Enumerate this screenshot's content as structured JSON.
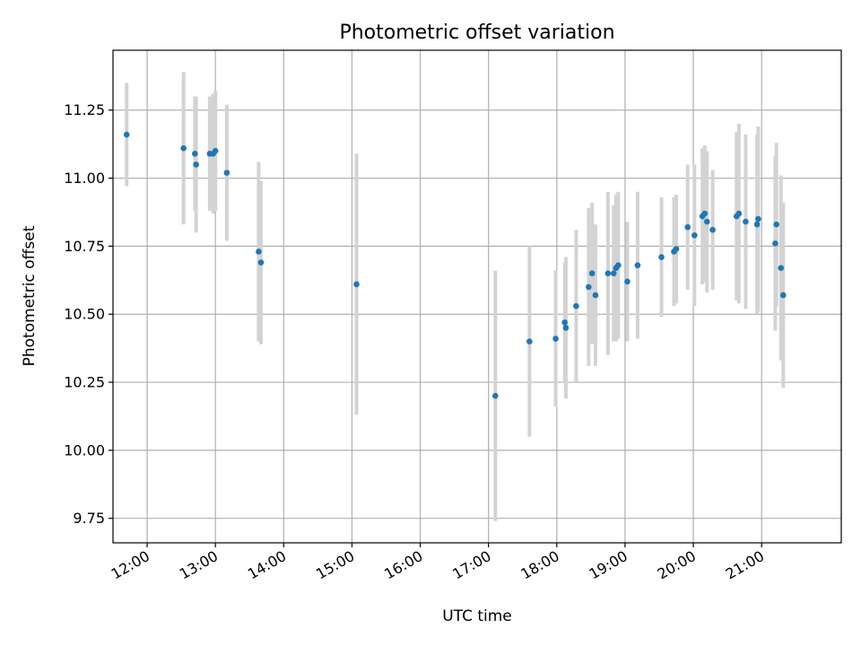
{
  "chart_data": {
    "type": "scatter",
    "title": "Photometric offset variation",
    "xlabel": "UTC time",
    "ylabel": "Photometric offset",
    "x_tick_labels": [
      "12:00",
      "13:00",
      "14:00",
      "15:00",
      "16:00",
      "17:00",
      "18:00",
      "19:00",
      "20:00",
      "21:00"
    ],
    "y_tick_labels": [
      "9.75",
      "10.00",
      "10.25",
      "10.50",
      "10.75",
      "11.00",
      "11.25"
    ],
    "xlim": [
      "11:30",
      "22:10"
    ],
    "ylim": [
      9.66,
      11.47
    ],
    "grid": true,
    "legend": "none",
    "colors": {
      "point": "#1f77b4",
      "errorbar": "#d3d3d3",
      "grid": "#b0b0b0"
    },
    "series": [
      {
        "x": [
          "11:42",
          "12:32",
          "12:42",
          "12:43",
          "12:55",
          "12:58",
          "13:00",
          "13:10",
          "13:38",
          "13:40",
          "15:04",
          "17:06",
          "17:36",
          "17:59",
          "18:07",
          "18:08",
          "18:17",
          "18:28",
          "18:31",
          "18:34",
          "18:45",
          "18:50",
          "18:52",
          "18:54",
          "19:02",
          "19:11",
          "19:32",
          "19:43",
          "19:45",
          "19:55",
          "20:01",
          "20:08",
          "20:10",
          "20:12",
          "20:17",
          "20:38",
          "20:40",
          "20:46",
          "20:56",
          "20:57",
          "21:12",
          "21:13",
          "21:17",
          "21:19"
        ],
        "y": [
          11.16,
          11.11,
          11.09,
          11.05,
          11.09,
          11.09,
          11.1,
          11.02,
          10.73,
          10.69,
          10.61,
          10.2,
          10.4,
          10.41,
          10.47,
          10.45,
          10.53,
          10.6,
          10.65,
          10.57,
          10.65,
          10.65,
          10.67,
          10.68,
          10.62,
          10.68,
          10.71,
          10.73,
          10.74,
          10.82,
          10.79,
          10.86,
          10.87,
          10.84,
          10.81,
          10.86,
          10.87,
          10.84,
          10.83,
          10.85,
          10.76,
          10.83,
          10.67,
          10.57
        ],
        "err": [
          0.19,
          0.28,
          0.21,
          0.25,
          0.21,
          0.22,
          0.22,
          0.25,
          0.33,
          0.3,
          0.48,
          0.46,
          0.35,
          0.25,
          0.22,
          0.26,
          0.28,
          0.29,
          0.26,
          0.26,
          0.3,
          0.25,
          0.27,
          0.27,
          0.22,
          0.27,
          0.22,
          0.2,
          0.2,
          0.23,
          0.26,
          0.25,
          0.25,
          0.26,
          0.22,
          0.31,
          0.33,
          0.32,
          0.33,
          0.34,
          0.32,
          0.3,
          0.34,
          0.34
        ]
      }
    ]
  }
}
